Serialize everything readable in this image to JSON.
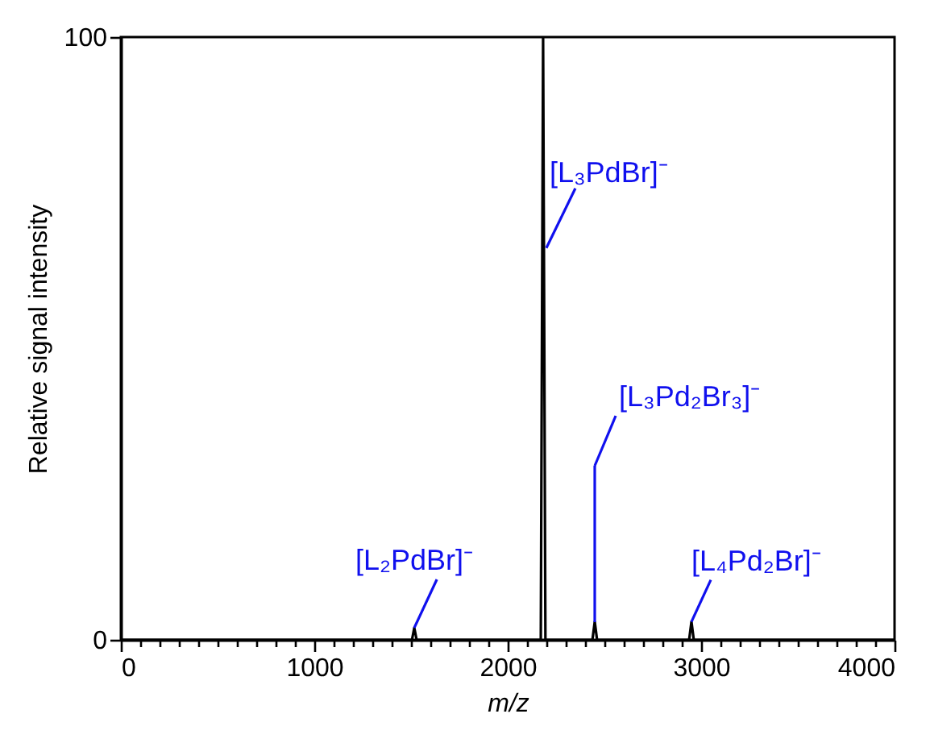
{
  "chart_data": {
    "type": "line",
    "xlabel": "m/z",
    "ylabel": "Relative signal intensity",
    "x": [
      0,
      1505,
      1517,
      1529,
      2171,
      2183,
      2195,
      2438,
      2450,
      2462,
      2938,
      2950,
      2962,
      4000
    ],
    "series": [
      {
        "color": "#000000",
        "values": [
          0,
          0,
          2,
          0,
          0,
          100,
          0,
          0,
          3,
          0,
          0,
          3,
          0,
          0
        ]
      }
    ],
    "xlim": [
      0,
      4000
    ],
    "xticks": [
      0,
      {
        "value": 100,
        "label": null
      },
      {
        "value": 200,
        "label": null
      },
      {
        "value": 300,
        "label": null
      },
      {
        "value": 400,
        "label": null
      },
      {
        "value": 500,
        "label": null
      },
      {
        "value": 600,
        "label": null
      },
      {
        "value": 700,
        "label": null
      },
      {
        "value": 800,
        "label": null
      },
      {
        "value": 900,
        "label": null
      },
      1000,
      {
        "value": 1100,
        "label": null
      },
      {
        "value": 1200,
        "label": null
      },
      {
        "value": 1300,
        "label": null
      },
      {
        "value": 1400,
        "label": null
      },
      {
        "value": 1500,
        "label": null
      },
      {
        "value": 1600,
        "label": null
      },
      {
        "value": 1700,
        "label": null
      },
      {
        "value": 1800,
        "label": null
      },
      {
        "value": 1900,
        "label": null
      },
      2000,
      {
        "value": 2100,
        "label": null
      },
      {
        "value": 2200,
        "label": null
      },
      {
        "value": 2300,
        "label": null
      },
      {
        "value": 2400,
        "label": null
      },
      {
        "value": 2500,
        "label": null
      },
      {
        "value": 2600,
        "label": null
      },
      {
        "value": 2700,
        "label": null
      },
      {
        "value": 2800,
        "label": null
      },
      {
        "value": 2900,
        "label": null
      },
      3000,
      {
        "value": 3100,
        "label": null
      },
      {
        "value": 3200,
        "label": null
      },
      {
        "value": 3300,
        "label": null
      },
      {
        "value": 3400,
        "label": null
      },
      {
        "value": 3500,
        "label": null
      },
      {
        "value": 3600,
        "label": null
      },
      {
        "value": 3700,
        "label": null
      },
      {
        "value": 3800,
        "label": null
      },
      {
        "value": 3900,
        "label": null
      },
      4000
    ],
    "ylim": [
      0,
      100
    ],
    "yticks": [
      0,
      100
    ],
    "grid": false,
    "marker": "none",
    "line_style": "solid",
    "annotations": [
      {
        "text": "[L₂PdBr]⁻",
        "x": 1517,
        "y": 2
      },
      {
        "text": "[L₃PdBr]⁻",
        "x": 2183,
        "y": 65
      },
      "[L₃Pd₂Br₃]⁻",
      {
        "text": "[L₄Pd₂Br]⁻",
        "x": 2950,
        "y": 3
      }
    ]
  }
}
